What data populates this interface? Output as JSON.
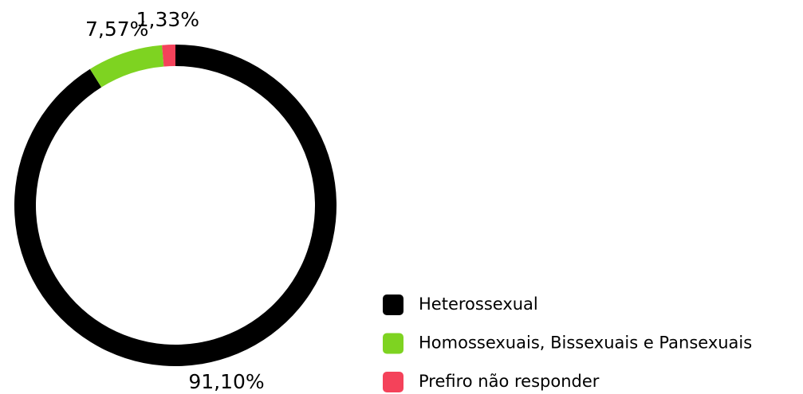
{
  "chart_data": {
    "type": "donut",
    "categories": [
      "Heterossexual",
      "Homossexuais, Bissexuais e Pansexuais",
      "Prefiro não responder"
    ],
    "values": [
      91.1,
      7.57,
      1.33
    ],
    "value_labels": [
      "91,10%",
      "7,57%",
      "1,33%"
    ],
    "colors": [
      "#000000",
      "#7ed321",
      "#f4425a"
    ],
    "legend": "bottom-right"
  }
}
